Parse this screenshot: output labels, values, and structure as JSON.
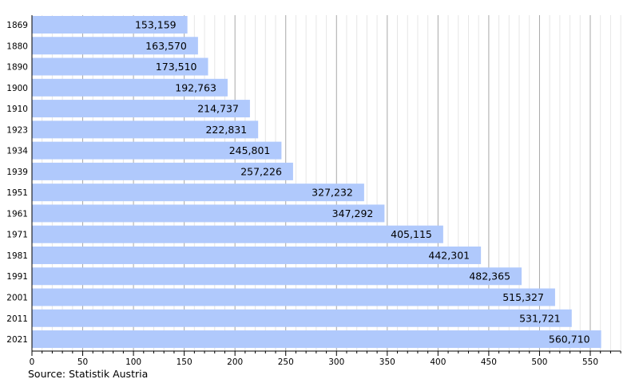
{
  "chart_data": {
    "type": "bar",
    "orientation": "horizontal",
    "categories": [
      "1869",
      "1880",
      "1890",
      "1900",
      "1910",
      "1923",
      "1934",
      "1939",
      "1951",
      "1961",
      "1971",
      "1981",
      "1991",
      "2001",
      "2011",
      "2021"
    ],
    "values": [
      153159,
      163570,
      173510,
      192763,
      214737,
      222831,
      245801,
      257226,
      327232,
      347292,
      405115,
      442301,
      482365,
      515327,
      531721,
      560710
    ],
    "value_labels": [
      "153,159",
      "163,570",
      "173,510",
      "192,763",
      "214,737",
      "222,831",
      "245,801",
      "257,226",
      "327,232",
      "347,292",
      "405,115",
      "442,301",
      "482,365",
      "515,327",
      "531,721",
      "560,710"
    ],
    "x_ticks": [
      "0",
      "50",
      "100",
      "150",
      "200",
      "250",
      "300",
      "350",
      "400",
      "450",
      "500",
      "550"
    ],
    "xlim": [
      0,
      580
    ],
    "x_unit_scale": 1000,
    "grid": true,
    "bar_color": "#b0c9fc",
    "source": "Source: Statistik Austria"
  }
}
